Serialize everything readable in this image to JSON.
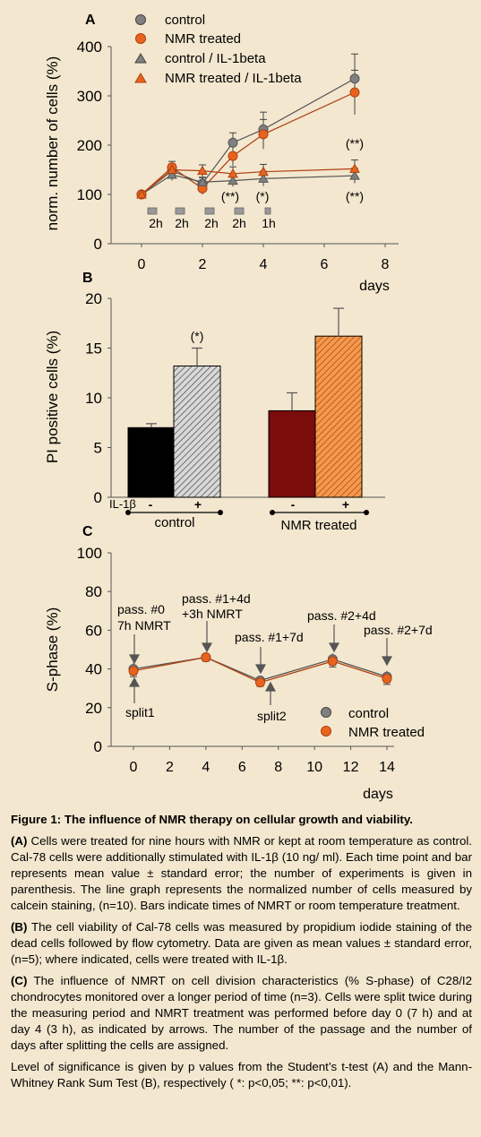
{
  "panelA": {
    "label": "A",
    "ylabel": "norm. number of cells (%)",
    "xlabel": "days",
    "legend": [
      "control",
      "NMR treated",
      "control / IL-1beta",
      "NMR treated / IL-1beta"
    ],
    "annotations": [
      "(**)",
      "(*)",
      "(**)",
      "(**)"
    ],
    "treatment_bars": [
      "2h",
      "2h",
      "2h",
      "2h",
      "1h"
    ]
  },
  "panelB": {
    "label": "B",
    "ylabel": "PI positive cells (%)",
    "il1b_label": "IL-1β",
    "signs": [
      "-",
      "+",
      "-",
      "+"
    ],
    "groups": [
      "control",
      "NMR treated"
    ],
    "annotation": "(*)"
  },
  "panelC": {
    "label": "C",
    "ylabel": "S-phase (%)",
    "xlabel": "days",
    "legend": [
      "control",
      "NMR treated"
    ],
    "annotations": [
      "pass. #0",
      "7h NMRT",
      "pass. #1+4d",
      "+3h NMRT",
      "pass. #1+7d",
      "pass. #2+4d",
      "pass. #2+7d",
      "split1",
      "split2"
    ]
  },
  "colors": {
    "control": "#808080",
    "nmr": "#e8641e",
    "bar_dark": "#7a0c0c",
    "bar_orange": "#e07020"
  },
  "chart_data": [
    {
      "type": "line",
      "x": [
        0,
        1,
        2,
        3,
        4,
        7
      ],
      "xlim": [
        -1,
        8
      ],
      "ylim": [
        0,
        400
      ],
      "xticks": [
        0,
        2,
        4,
        6,
        8
      ],
      "yticks": [
        0,
        100,
        200,
        300,
        400
      ],
      "series": [
        {
          "name": "control",
          "values": [
            100,
            148,
            122,
            205,
            232,
            335
          ],
          "errors": [
            5,
            12,
            12,
            20,
            35,
            50
          ]
        },
        {
          "name": "NMR treated",
          "values": [
            100,
            155,
            112,
            178,
            222,
            307
          ],
          "errors": [
            5,
            12,
            12,
            20,
            30,
            45
          ]
        },
        {
          "name": "control / IL-1beta",
          "values": [
            100,
            140,
            125,
            128,
            132,
            138
          ],
          "errors": [
            5,
            12,
            10,
            12,
            15,
            15
          ]
        },
        {
          "name": "NMR treated / IL-1beta",
          "values": [
            100,
            150,
            148,
            142,
            146,
            152
          ],
          "errors": [
            5,
            12,
            12,
            14,
            15,
            18
          ]
        }
      ]
    },
    {
      "type": "bar",
      "categories": [
        "control -",
        "control +",
        "NMR treated -",
        "NMR treated +"
      ],
      "values": [
        7.0,
        13.2,
        8.7,
        16.2
      ],
      "errors": [
        0.4,
        1.8,
        1.8,
        2.8
      ],
      "ylim": [
        0,
        20
      ],
      "yticks": [
        0,
        5,
        10,
        15,
        20
      ]
    },
    {
      "type": "line",
      "x": [
        0,
        4,
        7,
        11,
        14
      ],
      "xlim": [
        -1,
        14.5
      ],
      "ylim": [
        0,
        100
      ],
      "xticks": [
        0,
        2,
        4,
        6,
        8,
        10,
        12,
        14
      ],
      "yticks": [
        0,
        20,
        40,
        60,
        80,
        100
      ],
      "series": [
        {
          "name": "control",
          "values": [
            40,
            46,
            34,
            45,
            36
          ],
          "errors": [
            3,
            2,
            2,
            3,
            3
          ]
        },
        {
          "name": "NMR treated",
          "values": [
            39,
            46,
            33,
            44,
            35
          ],
          "errors": [
            3,
            2,
            2,
            3,
            3
          ]
        }
      ]
    }
  ],
  "caption": {
    "title": "Figure 1: The influence of NMR therapy on cellular growth and viability.",
    "a_label": "(A)",
    "a_text": " Cells were treated for nine hours with NMR or kept at room temperature as control. Cal-78 cells were additionally stimulated with IL-1β (10 ng/ ml). Each time point and bar represents mean value ± standard error; the number of experiments is given in parenthesis. The line graph represents the normalized number of cells measured by calcein staining, (n=10). Bars indicate times of NMRT or room temperature treatment.",
    "b_label": "(B)",
    "b_text": " The cell viability of Cal-78 cells was measured by propidium iodide staining of the dead cells followed by flow cytometry. Data are given as mean values ± standard error, (n=5); where indicated, cells were treated with IL-1β.",
    "c_label": "(C)",
    "c_text": " The influence of NMRT on cell division characteristics (% S-phase) of C28/I2 chondrocytes monitored over a longer period of time (n=3). Cells were split twice during the measuring period and NMRT treatment was performed before day 0 (7 h) and at day 4 (3 h), as indicated by arrows. The number of the passage and the number of days after splitting the cells are assigned.",
    "significance": "Level of significance is given by p values from the Student’s t-test (A) and the Mann-Whitney Rank Sum Test (B), respectively ( *: p<0,05; **: p<0,01)."
  }
}
